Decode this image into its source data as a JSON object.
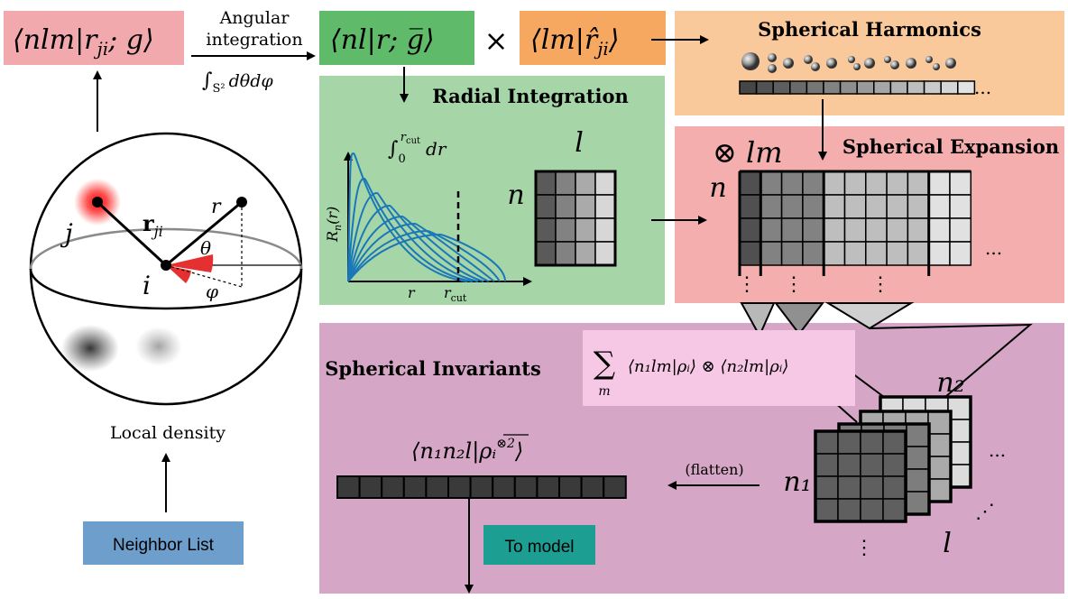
{
  "colors": {
    "salmon": "#f2a9ad",
    "green_dark": "#5fbb6a",
    "green_light": "#a6d6a8",
    "orange_box": "#f7a860",
    "orange_light": "#f9c99b",
    "pink_panel": "#f5aeae",
    "purple_panel": "#d6a6c6",
    "pink_formula": "#f6c8e6",
    "blue_box": "#6e9fcc",
    "teal_box": "#1c9e93"
  },
  "labels": {
    "top_left_bra": "⟨nlm|r",
    "top_left_sub": "ji",
    "top_left_tail": "; g⟩",
    "angular_line1": "Angular",
    "angular_line2": "integration",
    "angular_integral": "∫",
    "angular_integral_sub": "S²",
    "angular_integral_tail": "dθdφ",
    "radial_bra": "⟨nl|r; g̅⟩",
    "times": "×",
    "harm_bra": "⟨lm|r̂",
    "harm_sub": "ji",
    "harm_tail": "⟩",
    "spherical_harmonics": "Spherical Harmonics",
    "radial_integration": "Radial Integration",
    "radial_integral": "∫",
    "radial_integral_lower": "0",
    "radial_integral_upper": "r",
    "radial_integral_upper_sub": "cut",
    "radial_integral_tail": "dr",
    "rn_axis": "R",
    "rn_axis_sub": "n",
    "rn_axis_tail": "(r)",
    "r_axis": "r",
    "rcut": "r",
    "rcut_sub": "cut",
    "radial_n": "n",
    "radial_l": "l",
    "otimes_lm": "⊗ lm",
    "spherical_expansion": "Spherical Expansion",
    "exp_n": "n",
    "dots": "...",
    "vdots": "⋮",
    "sphere_j": "j",
    "sphere_i": "i",
    "sphere_r": "r",
    "sphere_rji": "r",
    "sphere_rji_sub": "ji",
    "theta": "θ",
    "phi": "φ",
    "local_density": "Local density",
    "neighbor_list": "Neighbor List",
    "spherical_invariants": "Spherical Invariants",
    "sum_symbol": "∑",
    "sum_sub": "m",
    "sum_formula": "⟨n₁lm|ρᵢ⟩ ⊗ ⟨n₂lm|ρᵢ⟩",
    "invariant_formula": "⟨n₁n₂l|ρᵢ",
    "invariant_formula_sup": "⊗2",
    "invariant_formula_tail": "⟩",
    "n2": "n₂",
    "n1": "n₁",
    "cube_l": "l",
    "flatten": "(flatten)",
    "to_model": "To model",
    "ddots": "⋰"
  }
}
